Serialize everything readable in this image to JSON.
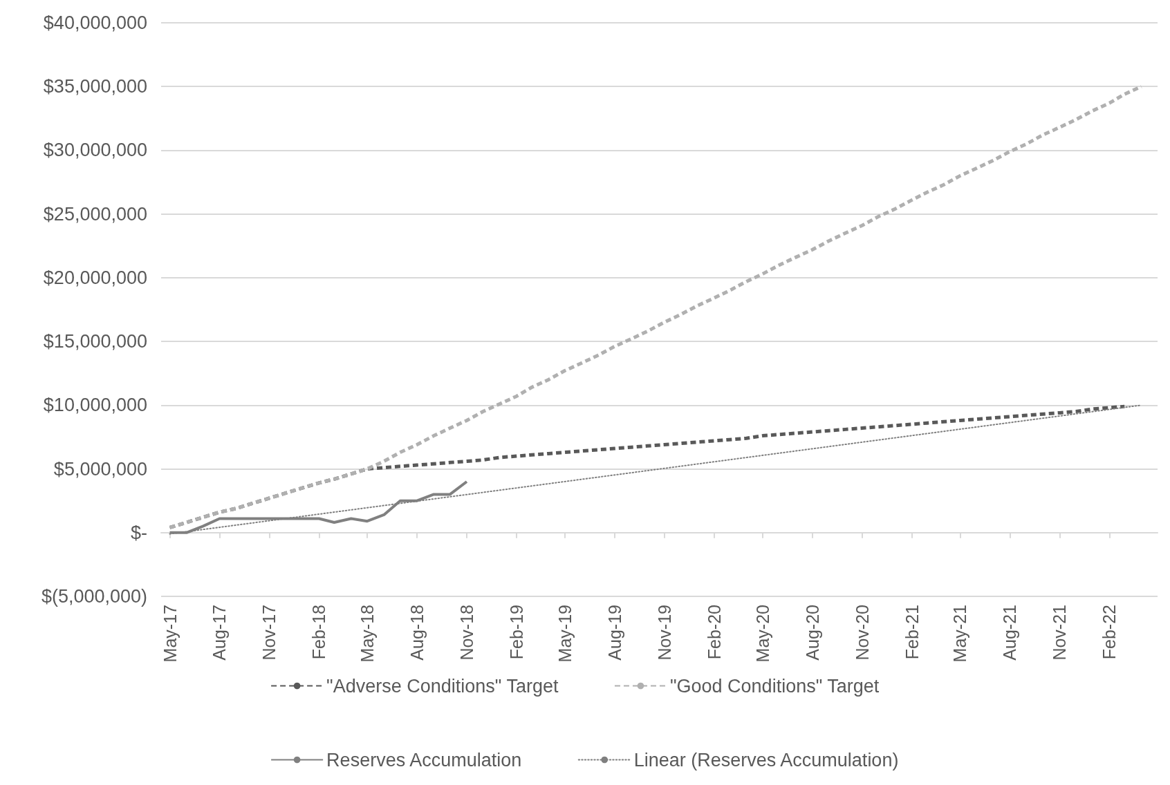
{
  "chart_data": {
    "type": "line",
    "x": [
      "2017-05",
      "2017-06",
      "2017-07",
      "2017-08",
      "2017-09",
      "2017-10",
      "2017-11",
      "2017-12",
      "2018-01",
      "2018-02",
      "2018-03",
      "2018-04",
      "2018-05",
      "2018-06",
      "2018-07",
      "2018-08",
      "2018-09",
      "2018-10",
      "2018-11",
      "2018-12",
      "2019-01",
      "2019-02",
      "2019-03",
      "2019-04",
      "2019-05",
      "2019-06",
      "2019-07",
      "2019-08",
      "2019-09",
      "2019-10",
      "2019-11",
      "2019-12",
      "2020-01",
      "2020-02",
      "2020-03",
      "2020-04",
      "2020-05",
      "2020-06",
      "2020-07",
      "2020-08",
      "2020-09",
      "2020-10",
      "2020-11",
      "2020-12",
      "2021-01",
      "2021-02",
      "2021-03",
      "2021-04",
      "2021-05",
      "2021-06",
      "2021-07",
      "2021-08",
      "2021-09",
      "2021-10",
      "2021-11",
      "2021-12",
      "2022-01",
      "2022-02",
      "2022-03",
      "2022-04"
    ],
    "series": [
      {
        "name": "\"Adverse Conditions\" Target",
        "color": "#595959",
        "line_style": "dashed",
        "values": [
          400000,
          800000,
          1200000,
          1600000,
          1900000,
          2300000,
          2700000,
          3100000,
          3500000,
          3900000,
          4200000,
          4600000,
          5000000,
          5100000,
          5200000,
          5300000,
          5400000,
          5500000,
          5600000,
          5700000,
          5900000,
          6000000,
          6100000,
          6200000,
          6300000,
          6400000,
          6500000,
          6600000,
          6700000,
          6800000,
          6900000,
          7000000,
          7100000,
          7200000,
          7300000,
          7400000,
          7600000,
          7700000,
          7800000,
          7900000,
          8000000,
          8100000,
          8200000,
          8300000,
          8400000,
          8500000,
          8600000,
          8700000,
          8800000,
          8900000,
          9000000,
          9100000,
          9200000,
          9300000,
          9400000,
          9500000,
          9700000,
          9800000,
          9900000,
          null
        ]
      },
      {
        "name": "\"Good Conditions\" Target",
        "color": "#b0b0b0",
        "line_style": "dashed",
        "values": [
          400000,
          800000,
          1200000,
          1600000,
          1900000,
          2300000,
          2700000,
          3100000,
          3500000,
          3900000,
          4200000,
          4600000,
          5000000,
          5600000,
          6300000,
          6900000,
          7600000,
          8200000,
          8800000,
          9500000,
          10100000,
          10700000,
          11400000,
          12000000,
          12700000,
          13300000,
          13900000,
          14600000,
          15200000,
          15800000,
          16500000,
          17100000,
          17800000,
          18400000,
          19000000,
          19700000,
          20300000,
          21000000,
          21600000,
          22200000,
          22900000,
          23500000,
          24100000,
          24800000,
          25400000,
          26100000,
          26700000,
          27300000,
          28000000,
          28600000,
          29200000,
          29900000,
          30500000,
          31200000,
          31800000,
          32400000,
          33100000,
          33700000,
          34400000,
          35000000
        ]
      },
      {
        "name": "Reserves Accumulation",
        "color": "#808080",
        "line_style": "solid",
        "values": [
          0,
          0,
          500000,
          1100000,
          1100000,
          1100000,
          1100000,
          1100000,
          1100000,
          1100000,
          800000,
          1100000,
          900000,
          1400000,
          2500000,
          2500000,
          3000000,
          3000000,
          4000000,
          null,
          null,
          null,
          null,
          null,
          null,
          null,
          null,
          null,
          null,
          null,
          null,
          null,
          null,
          null,
          null,
          null,
          null,
          null,
          null,
          null,
          null,
          null,
          null,
          null,
          null,
          null,
          null,
          null,
          null,
          null,
          null,
          null,
          null,
          null,
          null,
          null,
          null,
          null,
          null,
          null
        ]
      },
      {
        "name": "Linear (Reserves Accumulation)",
        "color": "#7f7f7f",
        "line_style": "dotted",
        "x": [
          "2017-05",
          "2022-04"
        ],
        "values": [
          -100000,
          10000000
        ]
      }
    ],
    "xlim": [
      "2017-04-15",
      "2022-05-01"
    ],
    "xticks": [
      {
        "value": "2017-05",
        "label": "May-17"
      },
      {
        "value": "2017-08",
        "label": "Aug-17"
      },
      {
        "value": "2017-11",
        "label": "Nov-17"
      },
      {
        "value": "2018-02",
        "label": "Feb-18"
      },
      {
        "value": "2018-05",
        "label": "May-18"
      },
      {
        "value": "2018-08",
        "label": "Aug-18"
      },
      {
        "value": "2018-11",
        "label": "Nov-18"
      },
      {
        "value": "2019-02",
        "label": "Feb-19"
      },
      {
        "value": "2019-05",
        "label": "May-19"
      },
      {
        "value": "2019-08",
        "label": "Aug-19"
      },
      {
        "value": "2019-11",
        "label": "Nov-19"
      },
      {
        "value": "2020-02",
        "label": "Feb-20"
      },
      {
        "value": "2020-05",
        "label": "May-20"
      },
      {
        "value": "2020-08",
        "label": "Aug-20"
      },
      {
        "value": "2020-11",
        "label": "Nov-20"
      },
      {
        "value": "2021-02",
        "label": "Feb-21"
      },
      {
        "value": "2021-05",
        "label": "May-21"
      },
      {
        "value": "2021-08",
        "label": "Aug-21"
      },
      {
        "value": "2021-11",
        "label": "Nov-21"
      },
      {
        "value": "2022-02",
        "label": "Feb-22"
      }
    ],
    "ylim": [
      -5000000,
      40000000
    ],
    "yticks": [
      {
        "value": -5000000,
        "label": "$(5,000,000)"
      },
      {
        "value": 0,
        "label": "$-"
      },
      {
        "value": 5000000,
        "label": "$5,000,000"
      },
      {
        "value": 10000000,
        "label": "$10,000,000"
      },
      {
        "value": 15000000,
        "label": "$15,000,000"
      },
      {
        "value": 20000000,
        "label": "$20,000,000"
      },
      {
        "value": 25000000,
        "label": "$25,000,000"
      },
      {
        "value": 30000000,
        "label": "$30,000,000"
      },
      {
        "value": 35000000,
        "label": "$35,000,000"
      },
      {
        "value": 40000000,
        "label": "$40,000,000"
      }
    ],
    "grid": "y",
    "legend": "bottom",
    "marker": "none"
  }
}
